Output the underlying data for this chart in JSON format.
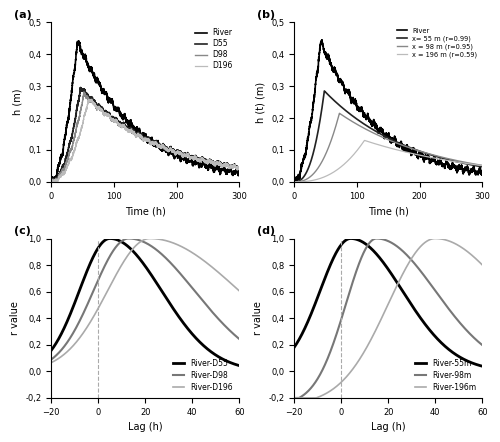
{
  "panel_a": {
    "title": "(a)",
    "xlabel": "Time (h)",
    "ylabel": "h (m)",
    "xlim": [
      0,
      300
    ],
    "ylim": [
      0,
      0.5
    ],
    "yticks": [
      0.0,
      0.1,
      0.2,
      0.3,
      0.4,
      0.5
    ],
    "xticks": [
      0,
      100,
      200,
      300
    ],
    "legend": [
      "River",
      "D55",
      "D98",
      "D196"
    ],
    "colors": [
      "#000000",
      "#222222",
      "#888888",
      "#bbbbbb"
    ],
    "lw": [
      1.2,
      1.2,
      1.0,
      0.9
    ]
  },
  "panel_b": {
    "title": "(b)",
    "xlabel": "Time (h)",
    "ylabel": "h (t) (m)",
    "xlim": [
      0,
      300
    ],
    "ylim": [
      0,
      0.5
    ],
    "yticks": [
      0.0,
      0.1,
      0.2,
      0.3,
      0.4,
      0.5
    ],
    "xticks": [
      0,
      100,
      200,
      300
    ],
    "legend": [
      "River",
      "x= 55 m (r=0.99)",
      "x = 98 m (r=0.95)",
      "x = 196 m (r=0.59)"
    ],
    "colors": [
      "#000000",
      "#222222",
      "#888888",
      "#bbbbbb"
    ],
    "lw": [
      1.2,
      1.2,
      1.0,
      0.9
    ]
  },
  "panel_c": {
    "title": "(c)",
    "xlabel": "Lag (h)",
    "ylabel": "r value",
    "xlim": [
      -20,
      60
    ],
    "ylim": [
      -0.2,
      1.0
    ],
    "yticks": [
      -0.2,
      0.0,
      0.2,
      0.4,
      0.6,
      0.8,
      1.0
    ],
    "xticks": [
      -20,
      0,
      20,
      40,
      60
    ],
    "legend": [
      "River-D55",
      "River-D98",
      "River-D196"
    ],
    "colors": [
      "#000000",
      "#777777",
      "#aaaaaa"
    ],
    "lw": [
      2.0,
      1.5,
      1.2
    ]
  },
  "panel_d": {
    "title": "(d)",
    "xlabel": "Lag (h)",
    "ylabel": "r value",
    "xlim": [
      -20,
      60
    ],
    "ylim": [
      -0.2,
      1.0
    ],
    "yticks": [
      -0.2,
      0.0,
      0.2,
      0.4,
      0.6,
      0.8,
      1.0
    ],
    "xticks": [
      -20,
      0,
      20,
      40,
      60
    ],
    "legend": [
      "River-55m",
      "River-98m",
      "River-196m"
    ],
    "colors": [
      "#000000",
      "#777777",
      "#aaaaaa"
    ],
    "lw": [
      2.0,
      1.5,
      1.2
    ]
  }
}
